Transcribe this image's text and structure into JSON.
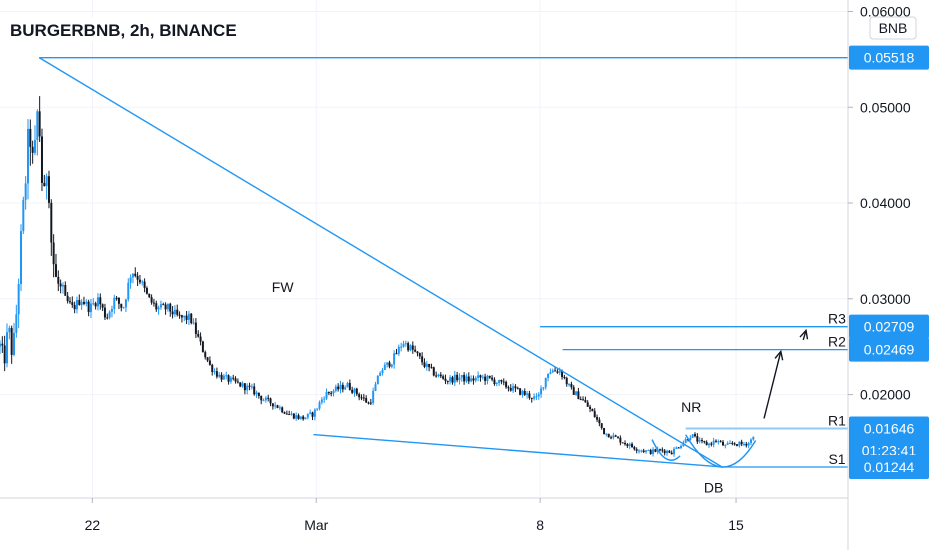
{
  "chart_data": {
    "type": "candlestick",
    "title": "BURGERBNB, 2h, BINANCE",
    "currency": "BNB",
    "ylim": [
      0.0092,
      0.0612
    ],
    "y_ticks": [
      "0.06000",
      "0.05000",
      "0.04000",
      "0.03000",
      "0.02000"
    ],
    "x_ticks": [
      {
        "label": "22",
        "day": 22
      },
      {
        "label": "Mar",
        "day": 30
      },
      {
        "label": "8",
        "day": 38
      },
      {
        "label": "15",
        "day": 45
      }
    ],
    "x_unit_note": "days",
    "xlim": [
      18.7,
      49
    ],
    "price_tags": [
      {
        "value": "0.05518",
        "price": 0.05518,
        "style": "line"
      },
      {
        "value": "0.02709",
        "price": 0.02709,
        "style": "level"
      },
      {
        "value": "0.02469",
        "price": 0.02469,
        "style": "level"
      },
      {
        "value": "0.01646",
        "price": 0.01646,
        "style": "current",
        "countdown": "01:23:41"
      },
      {
        "value": "0.01244",
        "price": 0.01244,
        "style": "level"
      }
    ],
    "levels": [
      {
        "label": "R3",
        "price": 0.02709,
        "from_day": 38.0,
        "to_day": 49
      },
      {
        "label": "R2",
        "price": 0.02469,
        "from_day": 38.8,
        "to_day": 49
      },
      {
        "label": "R1",
        "price": 0.01646,
        "from_day": 43.2,
        "to_day": 49
      },
      {
        "label": "S1",
        "price": 0.01244,
        "from_day": 44.5,
        "to_day": 49
      }
    ],
    "annotations": [
      {
        "text": "FW",
        "day": 28.8,
        "price": 0.0307
      },
      {
        "text": "NR",
        "day": 43.4,
        "price": 0.0182
      },
      {
        "text": "DB",
        "day": 44.2,
        "price": 0.0098
      }
    ],
    "trendlines": [
      {
        "name": "upper",
        "points": [
          [
            20.1,
            0.05518
          ],
          [
            49,
            0.05518
          ]
        ]
      },
      {
        "name": "falling",
        "points": [
          [
            20.1,
            0.05518
          ],
          [
            44.5,
            0.01244
          ]
        ]
      },
      {
        "name": "lower",
        "points": [
          [
            29.9,
            0.01582
          ],
          [
            44.5,
            0.01244
          ]
        ]
      }
    ],
    "arrows": [
      {
        "from": [
          46.0,
          0.0175
        ],
        "to": [
          46.6,
          0.0245
        ]
      },
      {
        "from": [
          47.4,
          0.0257
        ],
        "to": [
          47.5,
          0.0267
        ]
      }
    ],
    "arcs": [
      {
        "from": [
          42.0,
          0.0153
        ],
        "to": [
          43.0,
          0.0136
        ],
        "low": 0.0133,
        "center_day": 42.5
      },
      {
        "from": [
          43.2,
          0.0158
        ],
        "to": [
          45.7,
          0.0152
        ],
        "low": 0.01244,
        "center_day": 44.5
      }
    ],
    "price_path": [
      [
        18.7,
        0.025
      ],
      [
        18.85,
        0.0235
      ],
      [
        19.0,
        0.027
      ],
      [
        19.15,
        0.024
      ],
      [
        19.3,
        0.029
      ],
      [
        19.45,
        0.036
      ],
      [
        19.6,
        0.042
      ],
      [
        19.75,
        0.048
      ],
      [
        19.9,
        0.043
      ],
      [
        20.05,
        0.05
      ],
      [
        20.15,
        0.046
      ],
      [
        20.25,
        0.039
      ],
      [
        20.4,
        0.045
      ],
      [
        20.55,
        0.035
      ],
      [
        20.7,
        0.032
      ],
      [
        21.0,
        0.03
      ],
      [
        21.3,
        0.029
      ],
      [
        21.6,
        0.03
      ],
      [
        21.9,
        0.029
      ],
      [
        22.2,
        0.03
      ],
      [
        22.5,
        0.028
      ],
      [
        22.8,
        0.03
      ],
      [
        23.1,
        0.029
      ],
      [
        23.4,
        0.033
      ],
      [
        23.7,
        0.032
      ],
      [
        24.0,
        0.03
      ],
      [
        24.3,
        0.029
      ],
      [
        24.7,
        0.029
      ],
      [
        25.1,
        0.028
      ],
      [
        25.5,
        0.028
      ],
      [
        25.9,
        0.025
      ],
      [
        26.2,
        0.023
      ],
      [
        26.5,
        0.022
      ],
      [
        26.9,
        0.0215
      ],
      [
        27.3,
        0.021
      ],
      [
        27.7,
        0.0205
      ],
      [
        28.1,
        0.0195
      ],
      [
        28.5,
        0.019
      ],
      [
        29.0,
        0.018
      ],
      [
        29.5,
        0.0175
      ],
      [
        29.9,
        0.018
      ],
      [
        30.3,
        0.02
      ],
      [
        30.7,
        0.0205
      ],
      [
        31.1,
        0.021
      ],
      [
        31.5,
        0.02
      ],
      [
        31.9,
        0.019
      ],
      [
        32.3,
        0.0225
      ],
      [
        32.7,
        0.0235
      ],
      [
        33.1,
        0.0255
      ],
      [
        33.5,
        0.0245
      ],
      [
        33.9,
        0.023
      ],
      [
        34.3,
        0.022
      ],
      [
        34.7,
        0.0215
      ],
      [
        35.1,
        0.0218
      ],
      [
        35.5,
        0.0215
      ],
      [
        35.9,
        0.0218
      ],
      [
        36.3,
        0.0215
      ],
      [
        36.7,
        0.021
      ],
      [
        37.1,
        0.0205
      ],
      [
        37.5,
        0.02
      ],
      [
        37.9,
        0.0195
      ],
      [
        38.3,
        0.0225
      ],
      [
        38.7,
        0.0225
      ],
      [
        39.1,
        0.0205
      ],
      [
        39.5,
        0.0195
      ],
      [
        39.9,
        0.018
      ],
      [
        40.3,
        0.016
      ],
      [
        40.7,
        0.0155
      ],
      [
        41.1,
        0.0148
      ],
      [
        41.5,
        0.0143
      ],
      [
        41.9,
        0.014
      ],
      [
        42.3,
        0.0142
      ],
      [
        42.7,
        0.014
      ],
      [
        43.1,
        0.015
      ],
      [
        43.4,
        0.0158
      ],
      [
        43.7,
        0.015
      ],
      [
        44.0,
        0.0148
      ],
      [
        44.3,
        0.0152
      ],
      [
        44.6,
        0.0146
      ],
      [
        44.9,
        0.0149
      ],
      [
        45.2,
        0.0148
      ],
      [
        45.5,
        0.015
      ],
      [
        45.7,
        0.0164
      ]
    ]
  }
}
